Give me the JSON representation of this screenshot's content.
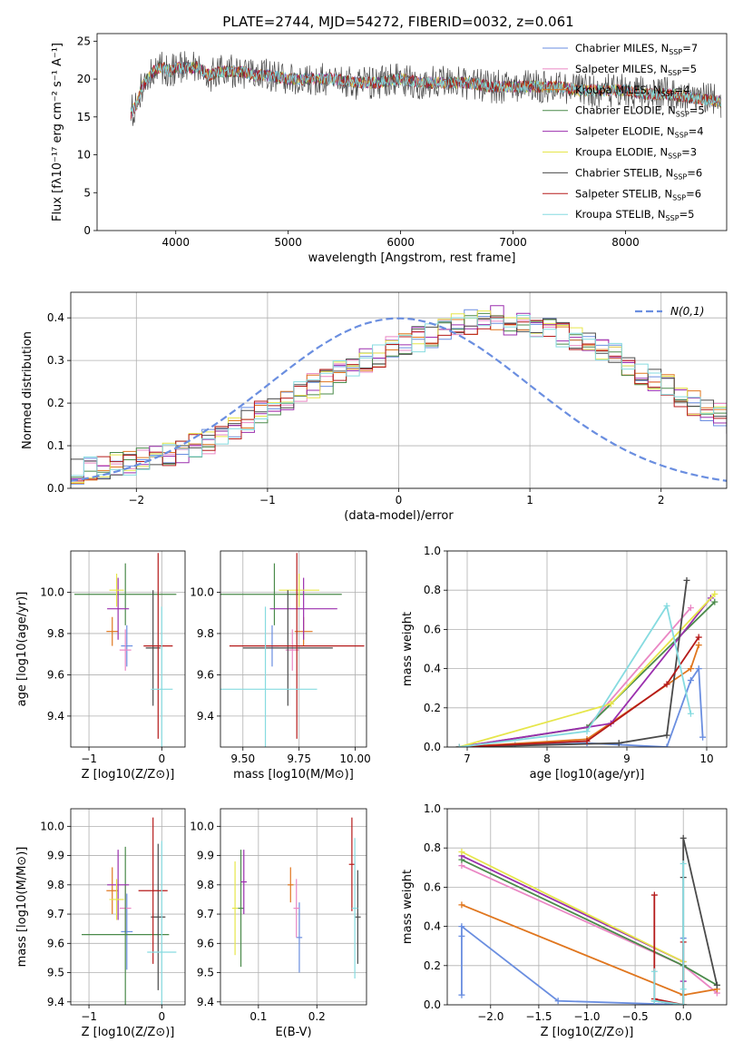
{
  "title": "PLATE=2744, MJD=54272, FIBERID=0032, z=0.061",
  "colors": [
    "#6a8ee0",
    "#ea87c4",
    "#e0761e",
    "#4a8a4a",
    "#9b2fae",
    "#e6e64a",
    "#4a4a4a",
    "#b51a1a",
    "#86dbe0"
  ],
  "legend_labels": [
    "Chabrier MILES, N",
    "Salpeter MILES, N",
    "Kroupa MILES, N",
    "Chabrier ELODIE, N",
    "Salpeter ELODIE, N",
    "Kroupa ELODIE, N",
    "Chabrier STELIB, N",
    "Salpeter STELIB, N",
    "Kroupa STELIB, N"
  ],
  "legend_sub": "SSP",
  "legend_counts": [
    "=7",
    "=5",
    "=4",
    "=5",
    "=4",
    "=3",
    "=6",
    "=6",
    "=5"
  ],
  "chart_data": [
    {
      "type": "line",
      "name": "spectrum",
      "title": "PLATE=2744, MJD=54272, FIBERID=0032, z=0.061",
      "xlabel": "wavelength [Angstrom, rest frame]",
      "ylabel": "Flux [fλ10⁻¹⁷ erg cm⁻² s⁻¹ A⁻¹]",
      "xlim": [
        3300,
        8900
      ],
      "ylim": [
        0,
        26
      ],
      "xticks": [
        4000,
        5000,
        6000,
        7000,
        8000
      ],
      "yticks": [
        0,
        5,
        10,
        15,
        20,
        25
      ],
      "x": [
        3600,
        3650,
        3700,
        3750,
        3800,
        3850,
        3900,
        3950,
        4000,
        4100,
        4200,
        4300,
        4400,
        4500,
        4600,
        4700,
        4800,
        5000,
        5200,
        5400,
        5600,
        5800,
        6000,
        6200,
        6400,
        6600,
        6800,
        7000,
        7200,
        7400,
        7600,
        7800,
        8000,
        8200,
        8400,
        8600,
        8850
      ],
      "y": [
        15.5,
        16.5,
        19.0,
        20.0,
        21.0,
        21.5,
        21.5,
        21.0,
        21.5,
        21.5,
        21.5,
        20.5,
        21.0,
        21.0,
        21.0,
        20.5,
        20.5,
        20.0,
        20.0,
        20.0,
        19.5,
        19.5,
        20.0,
        19.5,
        19.5,
        19.5,
        19.0,
        19.0,
        19.0,
        19.0,
        18.5,
        18.5,
        18.5,
        18.0,
        18.0,
        17.5,
        17.0
      ],
      "legend": "upper right",
      "grid": false
    },
    {
      "type": "bar",
      "name": "residual-histogram",
      "xlabel": "(data-model)/error",
      "ylabel": "Normed distribution",
      "xlim": [
        -2.5,
        2.5
      ],
      "ylim": [
        0,
        0.46
      ],
      "xticks": [
        -2,
        -1,
        0,
        1,
        2
      ],
      "yticks": [
        0.0,
        0.1,
        0.2,
        0.3,
        0.4
      ],
      "bin_width": 0.1,
      "bin_start": -2.5,
      "values": [
        0.04,
        0.045,
        0.05,
        0.06,
        0.06,
        0.07,
        0.07,
        0.08,
        0.09,
        0.1,
        0.11,
        0.12,
        0.14,
        0.16,
        0.18,
        0.19,
        0.2,
        0.22,
        0.24,
        0.25,
        0.27,
        0.28,
        0.3,
        0.31,
        0.33,
        0.34,
        0.35,
        0.36,
        0.37,
        0.38,
        0.39,
        0.39,
        0.4,
        0.39,
        0.39,
        0.38,
        0.37,
        0.36,
        0.35,
        0.34,
        0.33,
        0.31,
        0.29,
        0.27,
        0.25,
        0.24,
        0.22,
        0.2,
        0.18,
        0.17,
        0.15
      ],
      "legend_label": "N(0,1)",
      "grid": true
    },
    {
      "type": "scatter",
      "name": "age-vs-Z",
      "xlabel": "Z [log10(Z/Z⊙)]",
      "ylabel": "age [log10(age/yr)]",
      "xlim": [
        -1.25,
        0.32
      ],
      "ylim": [
        9.25,
        10.2
      ],
      "xticks": [
        -1,
        0
      ],
      "yticks": [
        9.4,
        9.6,
        9.8,
        10.0
      ],
      "x": [
        -0.48,
        -0.5,
        -0.68,
        -0.5,
        -0.6,
        -0.62,
        -0.12,
        -0.05,
        0.0
      ],
      "y": [
        9.74,
        9.72,
        9.81,
        9.99,
        9.92,
        10.01,
        9.73,
        9.74,
        9.53
      ],
      "xerr": [
        0.08,
        0.08,
        0.08,
        0.7,
        0.15,
        0.1,
        0.1,
        0.2,
        0.15
      ],
      "yerr": [
        0.1,
        0.1,
        0.07,
        0.15,
        0.15,
        0.08,
        0.28,
        0.45,
        0.4
      ]
    },
    {
      "type": "scatter",
      "name": "age-vs-mass",
      "xlabel": "mass [log10(M/M⊙)]",
      "ylabel": "",
      "xlim": [
        9.4,
        10.05
      ],
      "ylim": [
        9.25,
        10.2
      ],
      "xticks": [
        9.5,
        9.75,
        10.0
      ],
      "xticklabels": [
        "9.50",
        "9.75",
        "10.00"
      ],
      "yticks": [
        9.4,
        9.6,
        9.8,
        10.0
      ],
      "x": [
        9.63,
        9.72,
        9.77,
        9.64,
        9.77,
        9.75,
        9.7,
        9.74,
        9.6
      ],
      "y": [
        9.74,
        9.72,
        9.81,
        9.99,
        9.92,
        10.01,
        9.73,
        9.74,
        9.53
      ],
      "xerr": [
        0.03,
        0.03,
        0.04,
        0.3,
        0.15,
        0.09,
        0.2,
        0.3,
        0.23
      ],
      "yerr": [
        0.1,
        0.1,
        0.07,
        0.15,
        0.15,
        0.08,
        0.28,
        0.45,
        0.4
      ]
    },
    {
      "type": "line",
      "name": "massweight-vs-age",
      "xlabel": "age [log10(age/yr)]",
      "ylabel": "mass weight",
      "xlim": [
        6.75,
        10.25
      ],
      "ylim": [
        0,
        1
      ],
      "xticks": [
        7,
        8,
        9,
        10
      ],
      "yticks": [
        0.0,
        0.2,
        0.4,
        0.6,
        0.8,
        1.0
      ],
      "series": [
        {
          "x": [
            6.9,
            7.6,
            8.5,
            9.5,
            9.8,
            9.9,
            9.95
          ],
          "y": [
            0.0,
            0.01,
            0.02,
            0.0,
            0.34,
            0.4,
            0.05
          ]
        },
        {
          "x": [
            6.9,
            8.5,
            9.8
          ],
          "y": [
            0.0,
            0.1,
            0.71
          ]
        },
        {
          "x": [
            6.9,
            8.5,
            9.8,
            9.9
          ],
          "y": [
            0.0,
            0.04,
            0.4,
            0.52
          ]
        },
        {
          "x": [
            6.9,
            8.5,
            10.1
          ],
          "y": [
            0.0,
            0.1,
            0.74
          ]
        },
        {
          "x": [
            6.9,
            8.8,
            10.05
          ],
          "y": [
            0.0,
            0.12,
            0.76
          ]
        },
        {
          "x": [
            6.9,
            8.8,
            10.1
          ],
          "y": [
            0.0,
            0.22,
            0.78
          ]
        },
        {
          "x": [
            6.9,
            8.9,
            9.5,
            9.75
          ],
          "y": [
            0.0,
            0.02,
            0.06,
            0.85
          ]
        },
        {
          "x": [
            6.9,
            8.5,
            9.5,
            9.9
          ],
          "y": [
            0.0,
            0.03,
            0.32,
            0.56
          ]
        },
        {
          "x": [
            6.9,
            8.5,
            9.5,
            9.8
          ],
          "y": [
            0.0,
            0.08,
            0.72,
            0.17
          ]
        }
      ],
      "grid": true
    },
    {
      "type": "scatter",
      "name": "mass-vs-Z",
      "xlabel": "Z [log10(Z/Z⊙)]",
      "ylabel": "mass [log10(M/M⊙)]",
      "xlim": [
        -1.25,
        0.32
      ],
      "ylim": [
        9.39,
        10.06
      ],
      "xticks": [
        -1,
        0
      ],
      "yticks": [
        9.4,
        9.5,
        9.6,
        9.7,
        9.8,
        9.9,
        10.0
      ],
      "x": [
        -0.48,
        -0.5,
        -0.68,
        -0.5,
        -0.6,
        -0.62,
        -0.05,
        -0.12,
        0.0
      ],
      "y": [
        9.64,
        9.72,
        9.78,
        9.63,
        9.8,
        9.75,
        9.69,
        9.78,
        9.57
      ],
      "xerr": [
        0.08,
        0.08,
        0.08,
        0.6,
        0.15,
        0.1,
        0.1,
        0.2,
        0.2
      ],
      "yerr": [
        0.13,
        0.08,
        0.08,
        0.3,
        0.12,
        0.07,
        0.25,
        0.25,
        0.38
      ]
    },
    {
      "type": "scatter",
      "name": "mass-vs-EBV",
      "xlabel": "E(B-V)",
      "ylabel": "",
      "xlim": [
        0.035,
        0.285
      ],
      "ylim": [
        9.39,
        10.06
      ],
      "xticks": [
        0.1,
        0.2
      ],
      "yticks": [
        9.4,
        9.5,
        9.6,
        9.7,
        9.8,
        9.9,
        10.0
      ],
      "x": [
        0.17,
        0.165,
        0.155,
        0.07,
        0.075,
        0.06,
        0.27,
        0.26,
        0.265
      ],
      "y": [
        9.62,
        9.72,
        9.8,
        9.72,
        9.81,
        9.72,
        9.69,
        9.87,
        9.72
      ],
      "xerr": [
        0.005,
        0.005,
        0.005,
        0.005,
        0.005,
        0.005,
        0.005,
        0.005,
        0.005
      ],
      "yerr": [
        0.12,
        0.1,
        0.06,
        0.2,
        0.11,
        0.16,
        0.16,
        0.16,
        0.24
      ]
    },
    {
      "type": "line",
      "name": "massweight-vs-Z",
      "xlabel": "Z [log10(Z/Z⊙)]",
      "ylabel": "mass weight",
      "xlim": [
        -2.45,
        0.45
      ],
      "ylim": [
        0,
        1
      ],
      "xticks": [
        -2.0,
        -1.5,
        -1.0,
        -0.5,
        0.0
      ],
      "xticklabels": [
        "−2.0",
        "−1.5",
        "−1.0",
        "−0.5",
        "0.0"
      ],
      "yticks": [
        0.0,
        0.2,
        0.4,
        0.6,
        0.8,
        1.0
      ],
      "series": [
        {
          "x": [
            -2.3,
            -2.3,
            -2.3,
            -1.3,
            0.0,
            0.0,
            0.0
          ],
          "y": [
            0.05,
            0.35,
            0.4,
            0.02,
            0.0,
            0.34,
            0.05
          ]
        },
        {
          "x": [
            -2.3,
            0.0,
            0.35
          ],
          "y": [
            0.71,
            0.2,
            0.06
          ]
        },
        {
          "x": [
            -2.3,
            0.0,
            0.35
          ],
          "y": [
            0.51,
            0.05,
            0.08
          ]
        },
        {
          "x": [
            -2.3,
            0.0,
            0.35
          ],
          "y": [
            0.74,
            0.2,
            0.1
          ]
        },
        {
          "x": [
            -2.3,
            0.0,
            0.0
          ],
          "y": [
            0.76,
            0.22,
            0.12
          ]
        },
        {
          "x": [
            -2.3,
            0.0,
            0.0
          ],
          "y": [
            0.78,
            0.22,
            0.0
          ]
        },
        {
          "x": [
            -0.3,
            0.0,
            0.0,
            0.0,
            0.35
          ],
          "y": [
            0.02,
            0.0,
            0.65,
            0.85,
            0.1
          ]
        },
        {
          "x": [
            -0.3,
            -0.3,
            0.0,
            0.0
          ],
          "y": [
            0.56,
            0.03,
            0.0,
            0.32
          ]
        },
        {
          "x": [
            -0.3,
            -0.3,
            0.0,
            0.0,
            0.0
          ],
          "y": [
            0.17,
            0.02,
            0.0,
            0.72,
            0.08
          ]
        }
      ],
      "grid": true
    }
  ]
}
